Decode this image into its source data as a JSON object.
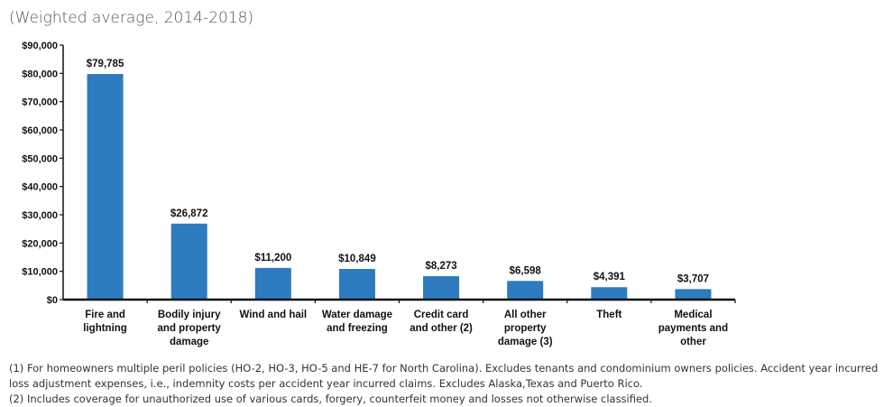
{
  "header": {
    "subtitle": "(Weighted average, 2014-2018)"
  },
  "chart_data": {
    "type": "bar",
    "subtitle": "(Weighted average, 2014-2018)",
    "categories": [
      [
        "Fire and",
        "lightning"
      ],
      [
        "Bodily injury",
        "and property",
        "damage"
      ],
      [
        "Wind and hail"
      ],
      [
        "Water damage",
        "and freezing"
      ],
      [
        "Credit card",
        "and other (2)"
      ],
      [
        "All other",
        "property",
        "damage (3)"
      ],
      [
        "Theft"
      ],
      [
        "Medical",
        "payments and",
        "other"
      ]
    ],
    "values": [
      79785,
      26872,
      11200,
      10849,
      8273,
      6598,
      4391,
      3707
    ],
    "value_labels": [
      "$79,785",
      "$26,872",
      "$11,200",
      "$10,849",
      "$8,273",
      "$6,598",
      "$4,391",
      "$3,707"
    ],
    "ylim": [
      0,
      90000
    ],
    "yticks": [
      0,
      10000,
      20000,
      30000,
      40000,
      50000,
      60000,
      70000,
      80000,
      90000
    ],
    "ytick_labels": [
      "$0",
      "$10,000",
      "$20,000",
      "$30,000",
      "$40,000",
      "$50,000",
      "$60,000",
      "$70,000",
      "$80,000",
      "$90,000"
    ],
    "bar_color": "#2e7bbf",
    "grid": false
  },
  "footnotes": [
    "(1) For homeowners multiple peril policies (HO-2, HO-3, HO-5 and HE-7 for North Carolina). Excludes tenants and condominium owners policies. Accident year incurred",
    "loss adjustment expenses, i.e., indemnity costs per accident year incurred claims. Excludes Alaska,Texas and Puerto Rico.",
    "(2) Includes coverage for unauthorized use of various cards, forgery, counterfeit money and losses not otherwise classified."
  ]
}
